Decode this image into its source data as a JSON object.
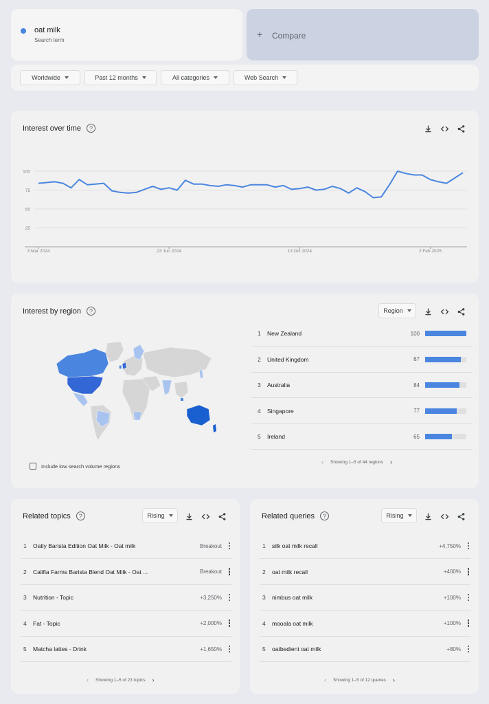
{
  "search_term": {
    "name": "oat milk",
    "sub": "Search term",
    "color": "#4a86e0"
  },
  "compare": {
    "label": "Compare",
    "plus": "+"
  },
  "filters": [
    "Worldwide",
    "Past 12 months",
    "All categories",
    "Web Search"
  ],
  "interest_over_time": {
    "title": "Interest over time",
    "help": "?",
    "chart_data": {
      "type": "line",
      "y_ticks": [
        "100",
        "75",
        "50",
        "25"
      ],
      "ylim": [
        0,
        100
      ],
      "x_ticks": [
        "3 Mar 2024",
        "23 Jun 2024",
        "13 Oct 2024",
        "2 Feb 2025"
      ],
      "x_tick_index": [
        0,
        16,
        32,
        48
      ],
      "series": [
        {
          "color": "#4a86e0",
          "values": [
            84,
            85,
            86,
            84,
            78,
            89,
            82,
            83,
            84,
            74,
            72,
            71,
            72,
            76,
            80,
            76,
            78,
            75,
            88,
            83,
            83,
            81,
            80,
            82,
            81,
            79,
            82,
            82,
            82,
            79,
            81,
            76,
            77,
            79,
            75,
            76,
            80,
            77,
            71,
            78,
            73,
            65,
            66,
            82,
            100,
            97,
            95,
            95,
            89,
            86,
            84,
            91,
            98
          ]
        }
      ]
    }
  },
  "interest_by_region": {
    "title": "Interest by region",
    "help": "?",
    "dropdown": "Region",
    "checkbox_label": "Include low search volume regions",
    "items": [
      {
        "rank": "1",
        "name": "New Zealand",
        "value": "100",
        "fraction": 1.0
      },
      {
        "rank": "2",
        "name": "United Kingdom",
        "value": "87",
        "fraction": 0.87
      },
      {
        "rank": "3",
        "name": "Australia",
        "value": "84",
        "fraction": 0.84
      },
      {
        "rank": "4",
        "name": "Singapore",
        "value": "77",
        "fraction": 0.77
      },
      {
        "rank": "5",
        "name": "Ireland",
        "value": "65",
        "fraction": 0.65
      }
    ],
    "pager": "Showing 1–5 of 44 regions"
  },
  "related_topics": {
    "title": "Related topics",
    "help": "?",
    "dropdown": "Rising",
    "items": [
      {
        "rank": "1",
        "label": "Oatly Barista Edition Oat Milk - Oat milk",
        "value": "Breakout"
      },
      {
        "rank": "2",
        "label": "Califia Farms Barista Blend Oat Milk - Oat ...",
        "value": "Breakout"
      },
      {
        "rank": "3",
        "label": "Nutrition - Topic",
        "value": "+3,250%"
      },
      {
        "rank": "4",
        "label": "Fat - Topic",
        "value": "+2,000%"
      },
      {
        "rank": "5",
        "label": "Matcha lattes - Drink",
        "value": "+1,650%"
      }
    ],
    "pager": "Showing 1–5 of 23 topics"
  },
  "related_queries": {
    "title": "Related queries",
    "help": "?",
    "dropdown": "Rising",
    "items": [
      {
        "rank": "1",
        "label": "silk oat milk recall",
        "value": "+4,750%"
      },
      {
        "rank": "2",
        "label": "oat milk recall",
        "value": "+400%"
      },
      {
        "rank": "3",
        "label": "nimbus oat milk",
        "value": "+100%"
      },
      {
        "rank": "4",
        "label": "mooala oat milk",
        "value": "+100%"
      },
      {
        "rank": "5",
        "label": "oatbedient oat milk",
        "value": "+80%"
      }
    ],
    "pager": "Showing 1–5 of 12 queries"
  }
}
